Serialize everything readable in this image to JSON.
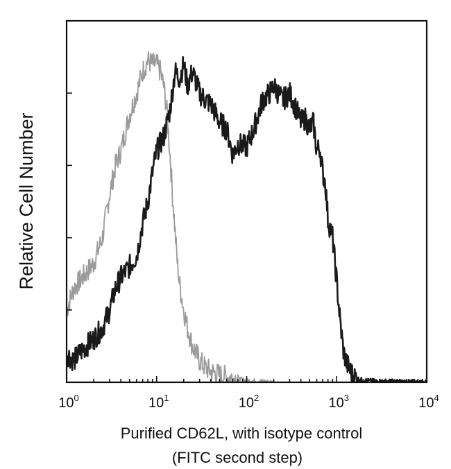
{
  "chart_data": {
    "type": "line",
    "ylabel": "Relative Cell Number",
    "xlabel_lines": [
      "Purified CD62L, with isotype control",
      "(FITC second step)"
    ],
    "x_scale": "log",
    "xlim": [
      1,
      10000
    ],
    "ylim": [
      0,
      100
    ],
    "x_ticks": [
      {
        "value": 1,
        "base": "10",
        "exp": "0"
      },
      {
        "value": 10,
        "base": "10",
        "exp": "1"
      },
      {
        "value": 100,
        "base": "10",
        "exp": "2"
      },
      {
        "value": 1000,
        "base": "10",
        "exp": "3"
      },
      {
        "value": 10000,
        "base": "10",
        "exp": "4"
      }
    ],
    "y_ticks": [
      0,
      20,
      40,
      60,
      80,
      100
    ],
    "grid": false,
    "series": [
      {
        "color": "#9a9a9a",
        "width": 1.8,
        "x": [
          1,
          1.2,
          1.5,
          2,
          2.5,
          3,
          3.5,
          4,
          5,
          6,
          7,
          8,
          9,
          10,
          11,
          12,
          13,
          14,
          15,
          16,
          17,
          18,
          20,
          22,
          25,
          30,
          35,
          40,
          50,
          60,
          80,
          100,
          150,
          200
        ],
        "y": [
          20,
          26,
          29,
          33,
          40,
          52,
          60,
          64,
          74,
          80,
          86,
          89,
          88,
          88,
          86,
          82,
          75,
          64,
          52,
          42,
          33,
          27,
          20,
          15,
          10,
          6,
          4,
          3,
          2,
          1.5,
          1,
          0.5,
          0.3,
          0
        ]
      },
      {
        "color": "#1a1a1a",
        "width": 2.6,
        "x": [
          1,
          1.2,
          1.5,
          2,
          2.5,
          3,
          3.5,
          4,
          5,
          6,
          7,
          8,
          9,
          10,
          12,
          14,
          16,
          18,
          20,
          22,
          25,
          30,
          35,
          40,
          50,
          60,
          70,
          80,
          100,
          120,
          150,
          180,
          200,
          250,
          300,
          350,
          400,
          450,
          500,
          550,
          600,
          650,
          700,
          750,
          800,
          900,
          1000,
          1100,
          1200,
          1300,
          1500,
          1700,
          2000,
          3000,
          5000,
          10000
        ],
        "y": [
          8,
          6,
          9,
          12,
          15,
          20,
          26,
          29,
          32,
          35,
          44,
          50,
          58,
          64,
          68,
          75,
          86,
          84,
          88,
          82,
          86,
          80,
          78,
          77,
          72,
          70,
          63,
          66,
          65,
          70,
          78,
          80,
          82,
          78,
          80,
          76,
          72,
          73,
          70,
          72,
          64,
          65,
          58,
          55,
          45,
          40,
          28,
          16,
          8,
          5,
          2,
          1,
          0.5,
          0.3,
          0.2,
          0
        ]
      }
    ]
  }
}
